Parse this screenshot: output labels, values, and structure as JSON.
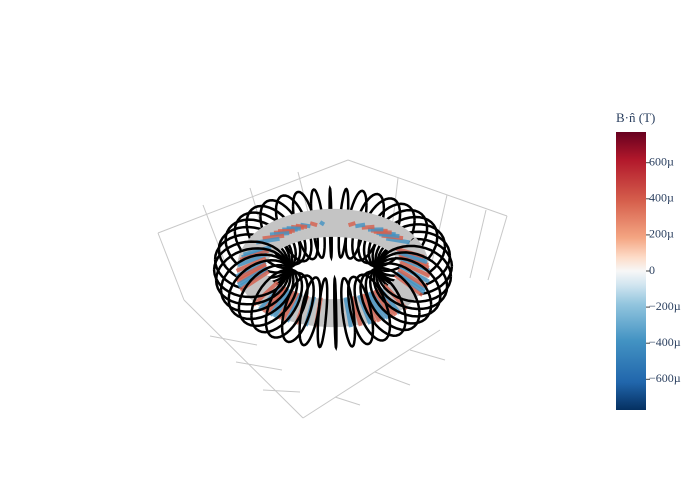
{
  "chart_data": {
    "type": "surface3d",
    "colorbar": {
      "title": "B·n̂ (T)",
      "clim": [
        -0.00077,
        0.00077
      ],
      "ticks": [
        {
          "value": 0.0006,
          "label": "600µ"
        },
        {
          "value": 0.0004,
          "label": "400µ"
        },
        {
          "value": 0.0002,
          "label": "200µ"
        },
        0,
        {
          "value": -0.0002,
          "label": "−200µ"
        },
        {
          "value": -0.0004,
          "label": "−400µ"
        },
        {
          "value": -0.0006,
          "label": "−600µ"
        }
      ]
    }
  }
}
